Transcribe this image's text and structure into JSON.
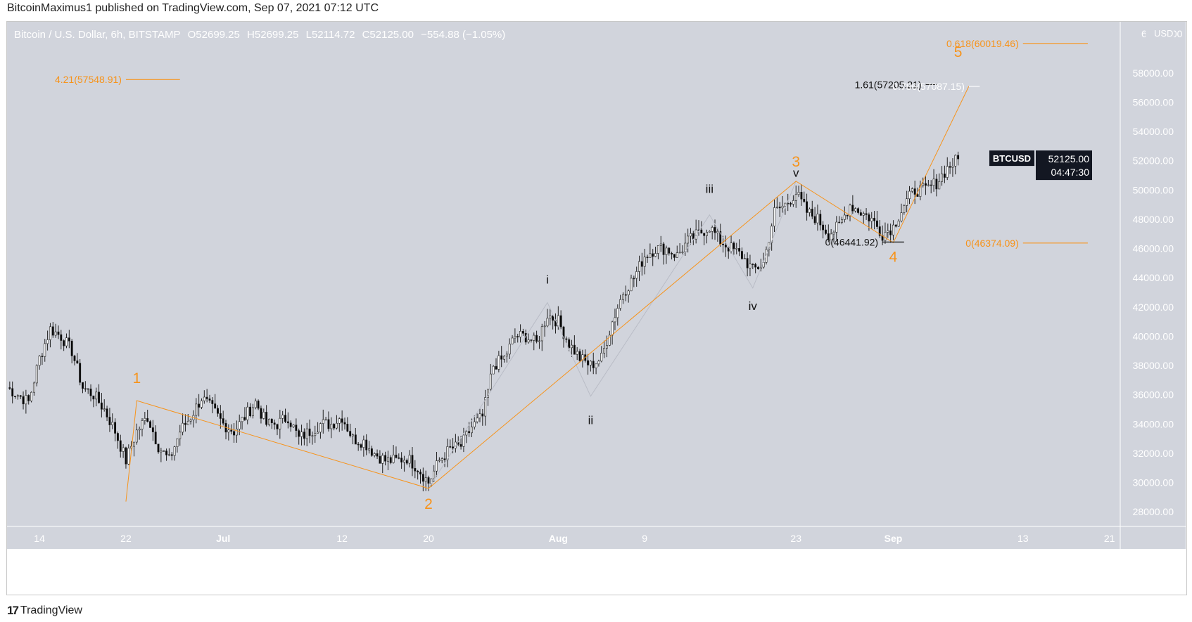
{
  "header": {
    "published": "BitcoinMaximus1 published on TradingView.com, Sep 07, 2021 07:12 UTC"
  },
  "symbol_info": {
    "title": "Bitcoin / U.S. Dollar, 6h, BITSTAMP",
    "open": "O52699.25",
    "high": "H52699.25",
    "low": "L52114.72",
    "close": "C52125.00",
    "change": "−554.88 (−1.05%)"
  },
  "footer": {
    "logo_mark": "17",
    "brand": "TradingView"
  },
  "colors": {
    "bg": "#d1d4dc",
    "up": "#ffffff",
    "down": "#000000",
    "orange": "#f7931a",
    "axis_text": "#ffffff"
  },
  "chart_data": {
    "type": "candlestick",
    "currency": "USD",
    "ylim": [
      27000,
      61500
    ],
    "y_ticks": [
      "28000.00",
      "30000.00",
      "32000.00",
      "34000.00",
      "36000.00",
      "38000.00",
      "40000.00",
      "42000.00",
      "44000.00",
      "46000.00",
      "48000.00",
      "50000.00",
      "52000.00",
      "54000.00",
      "56000.00",
      "58000.00"
    ],
    "y_tick_values": [
      28000,
      30000,
      32000,
      34000,
      36000,
      38000,
      40000,
      42000,
      44000,
      46000,
      48000,
      50000,
      52000,
      54000,
      56000,
      58000
    ],
    "y_top_partial": "60000.00",
    "x_range": [
      "2021-06-11",
      "2021-09-22"
    ],
    "x_ticks": [
      {
        "label": "14",
        "date": "2021-06-14"
      },
      {
        "label": "22",
        "date": "2021-06-22"
      },
      {
        "label": "Jul",
        "date": "2021-07-01"
      },
      {
        "label": "12",
        "date": "2021-07-12"
      },
      {
        "label": "20",
        "date": "2021-07-20"
      },
      {
        "label": "Aug",
        "date": "2021-08-01"
      },
      {
        "label": "9",
        "date": "2021-08-09"
      },
      {
        "label": "23",
        "date": "2021-08-23"
      },
      {
        "label": "Sep",
        "date": "2021-09-01"
      },
      {
        "label": "13",
        "date": "2021-09-13"
      },
      {
        "label": "21",
        "date": "2021-09-21"
      }
    ],
    "price_points": [
      [
        "2021-06-11",
        36500
      ],
      [
        "2021-06-12",
        36000
      ],
      [
        "2021-06-13",
        35500
      ],
      [
        "2021-06-14",
        38500
      ],
      [
        "2021-06-15",
        40500
      ],
      [
        "2021-06-16",
        40000
      ],
      [
        "2021-06-17",
        39000
      ],
      [
        "2021-06-18",
        36500
      ],
      [
        "2021-06-19",
        36000
      ],
      [
        "2021-06-20",
        35000
      ],
      [
        "2021-06-21",
        33500
      ],
      [
        "2021-06-22",
        31500
      ],
      [
        "2021-06-23",
        33500
      ],
      [
        "2021-06-24",
        34500
      ],
      [
        "2021-06-25",
        32500
      ],
      [
        "2021-06-26",
        31500
      ],
      [
        "2021-06-27",
        33500
      ],
      [
        "2021-06-28",
        34500
      ],
      [
        "2021-06-29",
        35800
      ],
      [
        "2021-06-30",
        35000
      ],
      [
        "2021-07-01",
        34000
      ],
      [
        "2021-07-02",
        33500
      ],
      [
        "2021-07-03",
        34500
      ],
      [
        "2021-07-04",
        35500
      ],
      [
        "2021-07-05",
        34000
      ],
      [
        "2021-07-06",
        34000
      ],
      [
        "2021-07-07",
        34500
      ],
      [
        "2021-07-08",
        33000
      ],
      [
        "2021-07-09",
        33500
      ],
      [
        "2021-07-10",
        34000
      ],
      [
        "2021-07-11",
        34000
      ],
      [
        "2021-07-12",
        34500
      ],
      [
        "2021-07-13",
        33000
      ],
      [
        "2021-07-14",
        32800
      ],
      [
        "2021-07-15",
        32000
      ],
      [
        "2021-07-16",
        31500
      ],
      [
        "2021-07-17",
        31500
      ],
      [
        "2021-07-18",
        31700
      ],
      [
        "2021-07-19",
        31000
      ],
      [
        "2021-07-20",
        30000
      ],
      [
        "2021-07-21",
        31500
      ],
      [
        "2021-07-22",
        32300
      ],
      [
        "2021-07-23",
        32500
      ],
      [
        "2021-07-24",
        33800
      ],
      [
        "2021-07-25",
        34500
      ],
      [
        "2021-07-26",
        38000
      ],
      [
        "2021-07-27",
        38500
      ],
      [
        "2021-07-28",
        40000
      ],
      [
        "2021-07-29",
        40000
      ],
      [
        "2021-07-30",
        39500
      ],
      [
        "2021-07-31",
        41500
      ],
      [
        "2021-08-01",
        41000
      ],
      [
        "2021-08-02",
        39500
      ],
      [
        "2021-08-03",
        38500
      ],
      [
        "2021-08-04",
        38000
      ],
      [
        "2021-08-05",
        38500
      ],
      [
        "2021-08-06",
        41000
      ],
      [
        "2021-08-07",
        43000
      ],
      [
        "2021-08-08",
        44000
      ],
      [
        "2021-08-09",
        45500
      ],
      [
        "2021-08-10",
        46000
      ],
      [
        "2021-08-11",
        46000
      ],
      [
        "2021-08-12",
        45500
      ],
      [
        "2021-08-13",
        46500
      ],
      [
        "2021-08-14",
        47000
      ],
      [
        "2021-08-15",
        47500
      ],
      [
        "2021-08-16",
        46500
      ],
      [
        "2021-08-17",
        46000
      ],
      [
        "2021-08-18",
        45500
      ],
      [
        "2021-08-19",
        44500
      ],
      [
        "2021-08-20",
        45000
      ],
      [
        "2021-08-21",
        48500
      ],
      [
        "2021-08-22",
        49000
      ],
      [
        "2021-08-23",
        49800
      ],
      [
        "2021-08-24",
        48500
      ],
      [
        "2021-08-25",
        48000
      ],
      [
        "2021-08-26",
        47000
      ],
      [
        "2021-08-27",
        47500
      ],
      [
        "2021-08-28",
        49000
      ],
      [
        "2021-08-29",
        48500
      ],
      [
        "2021-08-30",
        48000
      ],
      [
        "2021-08-31",
        47000
      ],
      [
        "2021-09-01",
        47500
      ],
      [
        "2021-09-02",
        49000
      ],
      [
        "2021-09-03",
        50000
      ],
      [
        "2021-09-04",
        50000
      ],
      [
        "2021-09-05",
        50500
      ],
      [
        "2021-09-06",
        51500
      ],
      [
        "2021-09-07",
        52125
      ]
    ],
    "last_price": {
      "symbol": "BTCUSD",
      "price": "52125.00",
      "countdown": "04:47:30"
    },
    "wave_path": [
      [
        "2021-06-22",
        28700
      ],
      [
        "2021-06-23",
        35600
      ],
      [
        "2021-07-20",
        29600
      ],
      [
        "2021-08-23",
        50600
      ],
      [
        "2021-09-01",
        46400
      ],
      [
        "2021-09-08",
        57100
      ]
    ],
    "subwave_path": [
      [
        "2021-07-20",
        29600
      ],
      [
        "2021-07-31",
        42300
      ],
      [
        "2021-08-04",
        35900
      ],
      [
        "2021-08-15",
        48300
      ],
      [
        "2021-08-19",
        43300
      ],
      [
        "2021-08-23",
        50600
      ]
    ],
    "wave_labels": [
      {
        "text": "1",
        "date": "2021-06-23",
        "price": 36800,
        "color": "orange"
      },
      {
        "text": "2",
        "date": "2021-07-20",
        "price": 28200,
        "color": "orange"
      },
      {
        "text": "3",
        "date": "2021-08-23",
        "price": 51600,
        "color": "orange"
      },
      {
        "text": "4",
        "date": "2021-09-01",
        "price": 45100,
        "color": "orange"
      },
      {
        "text": "5",
        "date": "2021-09-07",
        "price": 59100,
        "color": "orange"
      },
      {
        "text": "i",
        "date": "2021-07-31",
        "price": 43600,
        "color": "black"
      },
      {
        "text": "ii",
        "date": "2021-08-04",
        "price": 34000,
        "color": "black"
      },
      {
        "text": "iii",
        "date": "2021-08-15",
        "price": 49800,
        "color": "black"
      },
      {
        "text": "iv",
        "date": "2021-08-19",
        "price": 41800,
        "color": "black"
      },
      {
        "text": "v",
        "date": "2021-08-23",
        "price": 50900,
        "color": "black"
      }
    ],
    "fib_levels": [
      {
        "label": "4.21(57548.91)",
        "price": 57548.91,
        "color": "orange",
        "from": "2021-06-22",
        "to": "2021-06-27"
      },
      {
        "label": "0.618(60019.46)",
        "price": 60019.46,
        "color": "orange",
        "from": "2021-09-13",
        "to": "2021-09-19"
      },
      {
        "label": "0(46374.09)",
        "price": 46374.09,
        "color": "orange",
        "from": "2021-09-13",
        "to": "2021-09-19"
      },
      {
        "label": "1.61(57205.21)",
        "price": 57205.21,
        "color": "black",
        "from": "2021-09-04",
        "to": "2021-09-05"
      },
      {
        "label": "0.786(57087.15)",
        "price": 57087.15,
        "color": "white",
        "from": "2021-09-08",
        "to": "2021-09-09"
      },
      {
        "label": "0(46441.92)",
        "price": 46441.92,
        "color": "black",
        "from": "2021-08-31",
        "to": "2021-09-02"
      }
    ]
  }
}
